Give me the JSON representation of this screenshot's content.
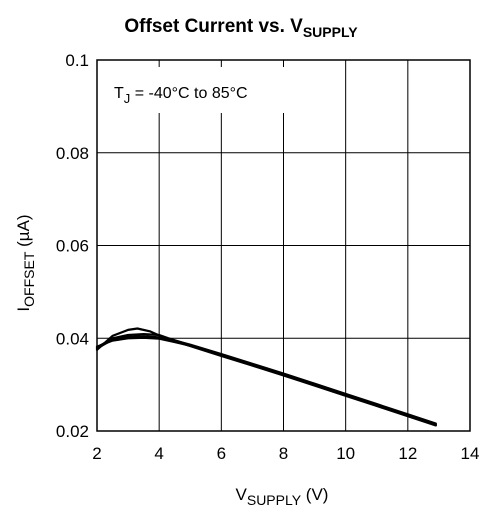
{
  "chart_data": {
    "type": "line",
    "title": {
      "main": "Offset Current vs. V",
      "sub": "SUPPLY"
    },
    "xlabel": {
      "main": "V",
      "sub": "SUPPLY",
      "unit": " (V)"
    },
    "ylabel": {
      "main": "I",
      "sub": "OFFSET",
      "unit": " (µA)"
    },
    "annotation": {
      "main": "T",
      "sub": "J",
      "rest": " = -40°C to 85°C"
    },
    "xlim": [
      2,
      14
    ],
    "ylim": [
      0.02,
      0.1
    ],
    "x_ticks": [
      2,
      4,
      6,
      8,
      10,
      12,
      14
    ],
    "y_ticks": [
      0.02,
      0.04,
      0.06,
      0.08,
      0.1
    ],
    "x_tick_labels": [
      "2",
      "4",
      "6",
      "8",
      "10",
      "12",
      "14"
    ],
    "y_tick_labels": [
      "0.02",
      "0.04",
      "0.06",
      "0.08",
      "0.1"
    ],
    "grid": true,
    "line_color": "#000000",
    "series": [
      {
        "x": [
          2.0,
          2.5,
          3.0,
          3.3,
          3.7,
          4.2,
          5.0,
          6.0,
          7.0,
          8.0,
          9.0,
          10.0,
          11.0,
          12.0,
          12.9
        ],
        "y": [
          0.0375,
          0.0405,
          0.0418,
          0.0421,
          0.0415,
          0.04,
          0.0383,
          0.0362,
          0.0341,
          0.032,
          0.0298,
          0.0276,
          0.0254,
          0.0232,
          0.0212
        ]
      },
      {
        "x": [
          2.0,
          2.5,
          3.0,
          3.5,
          4.0,
          4.3,
          5.0,
          6.0,
          7.0,
          8.0,
          9.0,
          10.0,
          11.0,
          12.0,
          12.9
        ],
        "y": [
          0.038,
          0.04,
          0.0407,
          0.0409,
          0.0407,
          0.04,
          0.0385,
          0.0364,
          0.0343,
          0.0322,
          0.03,
          0.0278,
          0.0256,
          0.0234,
          0.0214
        ]
      },
      {
        "x": [
          2.0,
          2.5,
          3.0,
          3.5,
          4.0,
          4.5,
          5.0,
          6.0,
          7.0,
          8.0,
          9.0,
          10.0,
          11.0,
          12.0,
          12.9
        ],
        "y": [
          0.0378,
          0.0397,
          0.0403,
          0.0404,
          0.0402,
          0.0395,
          0.0386,
          0.0366,
          0.0345,
          0.0324,
          0.0302,
          0.028,
          0.0258,
          0.0236,
          0.0216
        ]
      },
      {
        "x": [
          2.0,
          2.5,
          3.0,
          3.5,
          4.0,
          4.5,
          5.0,
          6.0,
          7.0,
          8.0,
          9.0,
          10.0,
          11.0,
          12.0,
          12.9
        ],
        "y": [
          0.0382,
          0.0395,
          0.04,
          0.0401,
          0.0399,
          0.0392,
          0.0384,
          0.0364,
          0.0343,
          0.0322,
          0.03,
          0.0278,
          0.0256,
          0.0234,
          0.0213
        ]
      }
    ]
  }
}
